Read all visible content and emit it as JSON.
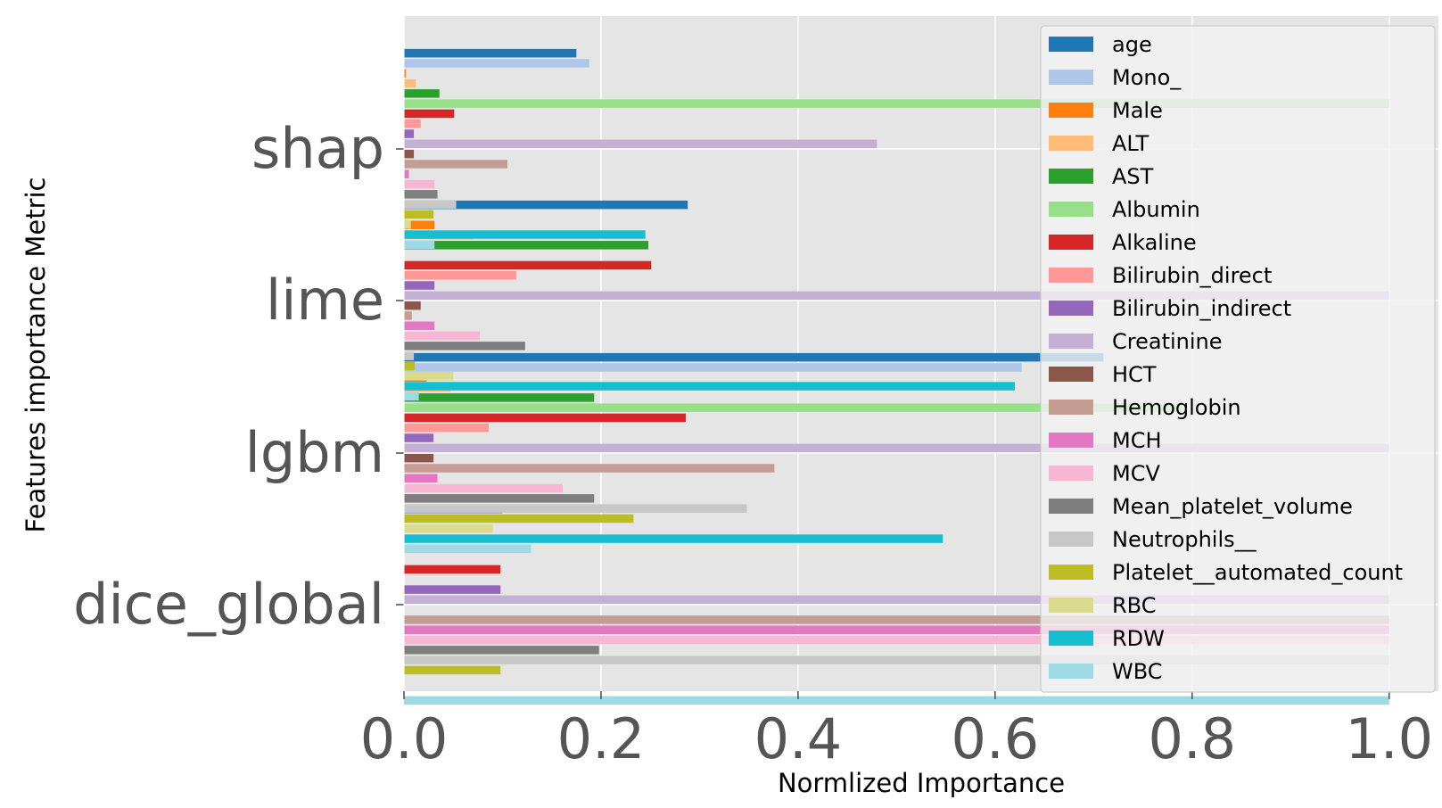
{
  "chart_data": {
    "type": "bar",
    "orientation": "horizontal",
    "title": "",
    "xlabel": "Normlized Importance",
    "ylabel": "Features importance Metric",
    "xlim": [
      0,
      1.05
    ],
    "xticks": [
      "0.0",
      "0.2",
      "0.4",
      "0.6",
      "0.8",
      "1.0"
    ],
    "categories": [
      "shap",
      "lime",
      "lgbm",
      "dice_global"
    ],
    "grid": true,
    "legend_position": "top-right",
    "series": [
      {
        "name": "age",
        "color": "#1f77b4",
        "values": [
          0.175,
          0.288,
          0.71,
          0.1
        ]
      },
      {
        "name": "Mono_",
        "color": "#aec7e8",
        "values": [
          0.188,
          0.002,
          0.627,
          0
        ]
      },
      {
        "name": "Male",
        "color": "#ff7f0e",
        "values": [
          0.002,
          0.031,
          0.023,
          0
        ]
      },
      {
        "name": "ALT",
        "color": "#ffbb78",
        "values": [
          0.012,
          0.07,
          0.047,
          0
        ]
      },
      {
        "name": "AST",
        "color": "#2ca02c",
        "values": [
          0.036,
          0.248,
          0.193,
          0
        ]
      },
      {
        "name": "Albumin",
        "color": "#98df8a",
        "values": [
          1.0,
          0.0,
          0.79,
          0
        ]
      },
      {
        "name": "Alkaline",
        "color": "#d62728",
        "values": [
          0.051,
          0.251,
          0.286,
          0.098
        ]
      },
      {
        "name": "Bilirubin_direct",
        "color": "#ff9896",
        "values": [
          0.017,
          0.114,
          0.086,
          0
        ]
      },
      {
        "name": "Bilirubin_indirect",
        "color": "#9467bd",
        "values": [
          0.01,
          0.031,
          0.03,
          0.098
        ]
      },
      {
        "name": "Creatinine",
        "color": "#c5b0d5",
        "values": [
          0.48,
          1.0,
          1.0,
          1.0
        ]
      },
      {
        "name": "HCT",
        "color": "#8c564b",
        "values": [
          0.01,
          0.017,
          0.03,
          0
        ]
      },
      {
        "name": "Hemoglobin",
        "color": "#c49c94",
        "values": [
          0.105,
          0.008,
          0.376,
          1.0
        ]
      },
      {
        "name": "MCH",
        "color": "#e377c2",
        "values": [
          0.005,
          0.031,
          0.034,
          1.0
        ]
      },
      {
        "name": "MCV",
        "color": "#f7b6d2",
        "values": [
          0.031,
          0.077,
          0.161,
          1.0
        ]
      },
      {
        "name": "Mean_platelet_volume",
        "color": "#7f7f7f",
        "values": [
          0.034,
          0.123,
          0.193,
          0.198
        ]
      },
      {
        "name": "Neutrophils__",
        "color": "#c7c7c7",
        "values": [
          0.053,
          0.01,
          0.348,
          1.0
        ]
      },
      {
        "name": "Platelet__automated_count",
        "color": "#bcbd22",
        "values": [
          0.03,
          0.011,
          0.233,
          0.098
        ]
      },
      {
        "name": "RBC",
        "color": "#dbdb8d",
        "values": [
          0.007,
          0.05,
          0.09,
          0
        ]
      },
      {
        "name": "RDW",
        "color": "#17becf",
        "values": [
          0.245,
          0.62,
          0.547,
          0
        ]
      },
      {
        "name": "WBC",
        "color": "#9edae5",
        "values": [
          0.031,
          0.015,
          0.129,
          1.0
        ]
      }
    ]
  }
}
